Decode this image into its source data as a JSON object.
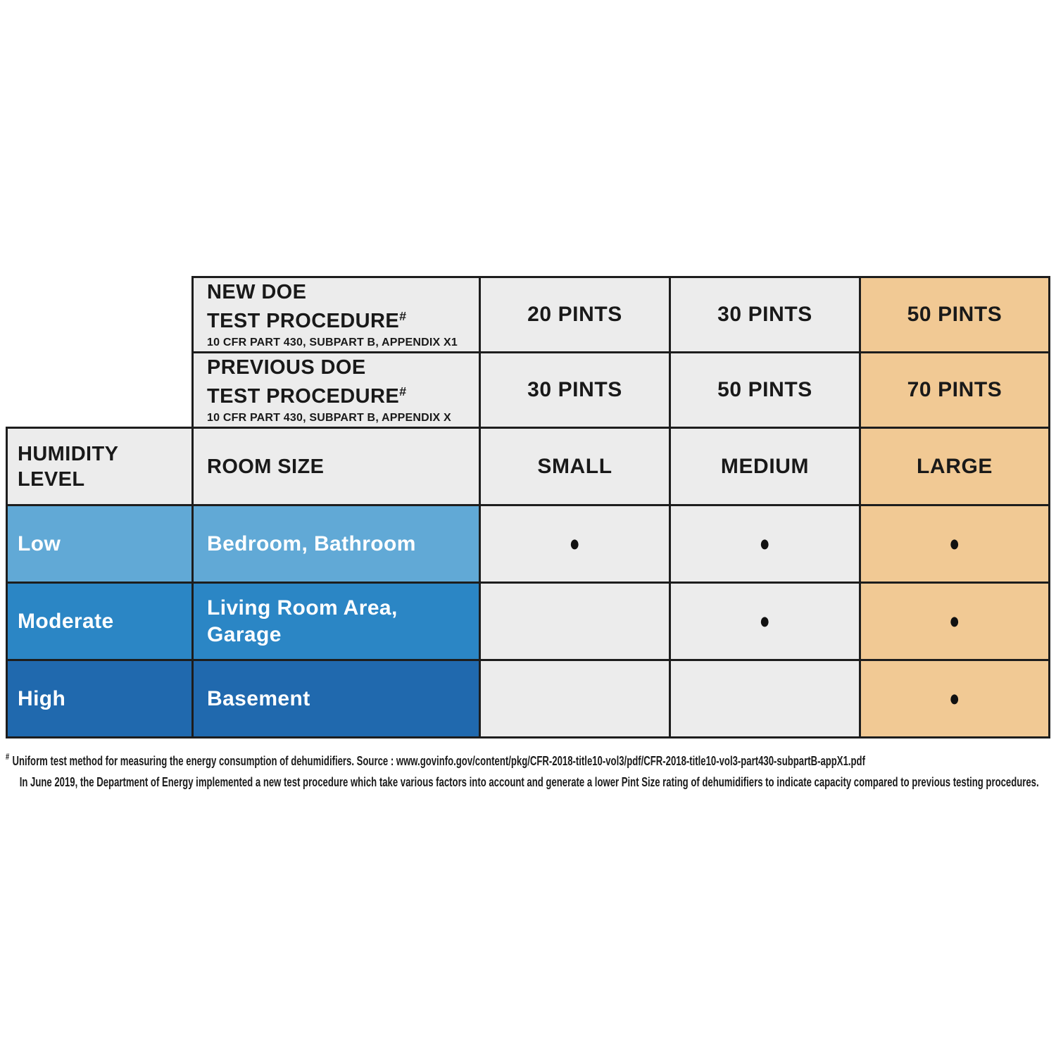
{
  "table": {
    "dot_char": "●",
    "header_rows": [
      {
        "title": "NEW DOE\nTEST PROCEDURE",
        "hash": "#",
        "subtitle": "10 CFR PART 430, SUBPART B, APPENDIX X1",
        "values": [
          "20 PINTS",
          "30 PINTS",
          "50 PINTS"
        ]
      },
      {
        "title": "PREVIOUS DOE\nTEST PROCEDURE",
        "hash": "#",
        "subtitle": "10 CFR PART 430, SUBPART B, APPENDIX X",
        "values": [
          "30 PINTS",
          "50 PINTS",
          "70 PINTS"
        ]
      }
    ],
    "size_row": {
      "humidity_label": "HUMIDITY\nLEVEL",
      "room_label": "ROOM SIZE",
      "sizes": [
        "SMALL",
        "MEDIUM",
        "LARGE"
      ]
    },
    "humidity_rows": [
      {
        "level": "Low",
        "rooms": "Bedroom, Bathroom",
        "dots": [
          true,
          true,
          true
        ]
      },
      {
        "level": "Moderate",
        "rooms": "Living Room Area,\nGarage",
        "dots": [
          false,
          true,
          true
        ]
      },
      {
        "level": "High",
        "rooms": "Basement",
        "dots": [
          false,
          false,
          true
        ]
      }
    ],
    "colors": {
      "cell_gray": "#ececec",
      "large_column_orange": "#f1c994",
      "low_blue": "#61a9d6",
      "moderate_blue": "#2b86c5",
      "high_blue": "#2069ae",
      "border_black": "#1d1d1d",
      "text_dark": "#191919",
      "text_white": "#ffffff"
    }
  },
  "footnote": {
    "marker": "#",
    "line1": "Uniform test method for measuring the energy consumption of dehumidifiers. Source : www.govinfo.gov/content/pkg/CFR-2018-title10-vol3/pdf/CFR-2018-title10-vol3-part430-subpartB-appX1.pdf",
    "line2": "In June 2019, the Department of Energy implemented a new test procedure which take various factors into account and generate a lower Pint Size rating of dehumidifiers to indicate capacity compared to previous testing procedures."
  },
  "chart_data": {
    "type": "table",
    "title": "Dehumidifier pint capacity by DOE test procedure, room size and humidity level",
    "columns": [
      "HUMIDITY LEVEL",
      "ROOM SIZE",
      "SMALL",
      "MEDIUM",
      "LARGE"
    ],
    "capacity_header_rows": [
      {
        "label": "NEW DOE TEST PROCEDURE# (10 CFR PART 430, SUBPART B, APPENDIX X1)",
        "small": "20 PINTS",
        "medium": "30 PINTS",
        "large": "50 PINTS"
      },
      {
        "label": "PREVIOUS DOE TEST PROCEDURE# (10 CFR PART 430, SUBPART B, APPENDIX X)",
        "small": "30 PINTS",
        "medium": "50 PINTS",
        "large": "70 PINTS"
      }
    ],
    "rows": [
      {
        "humidity_level": "Low",
        "room_size": "Bedroom, Bathroom",
        "small": true,
        "medium": true,
        "large": true
      },
      {
        "humidity_level": "Moderate",
        "room_size": "Living Room Area, Garage",
        "small": false,
        "medium": true,
        "large": true
      },
      {
        "humidity_level": "High",
        "room_size": "Basement",
        "small": false,
        "medium": false,
        "large": true
      }
    ],
    "footnote": "# Uniform test method for measuring the energy consumption of dehumidifiers. Source : www.govinfo.gov/content/pkg/CFR-2018-title10-vol3/pdf/CFR-2018-title10-vol3-part430-subpartB-appX1.pdf In June 2019, the Department of Energy implemented a new test procedure which take various factors into account and generate a lower Pint Size rating of dehumidifiers to indicate capacity compared to previous testing procedures."
  }
}
